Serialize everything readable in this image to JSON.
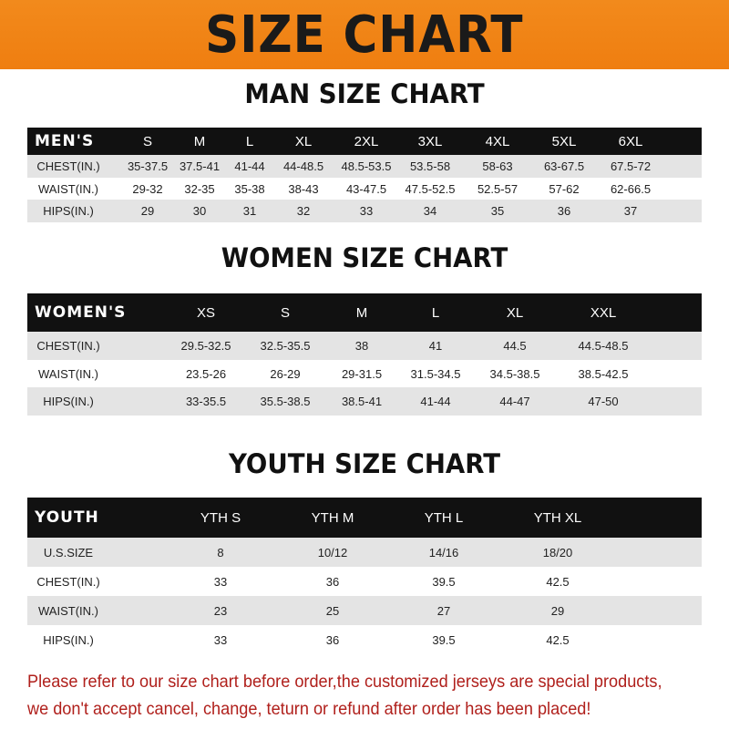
{
  "banner": {
    "title": "SIZE CHART",
    "color": "#f28a1c"
  },
  "men": {
    "title": "MAN SIZE CHART",
    "header": [
      "MEN'S",
      "S",
      "M",
      "L",
      "XL",
      "2XL",
      "3XL",
      "4XL",
      "5XL",
      "6XL"
    ],
    "rows": [
      [
        "CHEST(IN.)",
        "35-37.5",
        "37.5-41",
        "41-44",
        "44-48.5",
        "48.5-53.5",
        "53.5-58",
        "58-63",
        "63-67.5",
        "67.5-72"
      ],
      [
        "WAIST(IN.)",
        "29-32",
        "32-35",
        "35-38",
        "38-43",
        "43-47.5",
        "47.5-52.5",
        "52.5-57",
        "57-62",
        "62-66.5"
      ],
      [
        "HIPS(IN.)",
        "29",
        "30",
        "31",
        "32",
        "33",
        "34",
        "35",
        "36",
        "37"
      ]
    ]
  },
  "women": {
    "title": "WOMEN SIZE CHART",
    "header": [
      "WOMEN'S",
      "XS",
      "S",
      "M",
      "L",
      "XL",
      "XXL"
    ],
    "rows": [
      [
        "CHEST(IN.)",
        "29.5-32.5",
        "32.5-35.5",
        "38",
        "41",
        "44.5",
        "44.5-48.5"
      ],
      [
        "WAIST(IN.)",
        "23.5-26",
        "26-29",
        "29-31.5",
        "31.5-34.5",
        "34.5-38.5",
        "38.5-42.5"
      ],
      [
        "HIPS(IN.)",
        "33-35.5",
        "35.5-38.5",
        "38.5-41",
        "41-44",
        "44-47",
        "47-50"
      ]
    ]
  },
  "youth": {
    "title": "YOUTH SIZE CHART",
    "header": [
      "YOUTH",
      "YTH S",
      "YTH M",
      "YTH L",
      "YTH XL"
    ],
    "rows": [
      [
        "U.S.SIZE",
        "8",
        "10/12",
        "14/16",
        "18/20"
      ],
      [
        "CHEST(IN.)",
        "33",
        "36",
        "39.5",
        "42.5"
      ],
      [
        "WAIST(IN.)",
        "23",
        "25",
        "27",
        "29"
      ],
      [
        "HIPS(IN.)",
        "33",
        "36",
        "39.5",
        "42.5"
      ]
    ]
  },
  "notice": {
    "line1": "Please refer to our size chart before order,the customized jerseys are special products,",
    "line2": "we don't accept cancel, change, teturn or refund after order has been placed!",
    "color": "#b0201c"
  }
}
